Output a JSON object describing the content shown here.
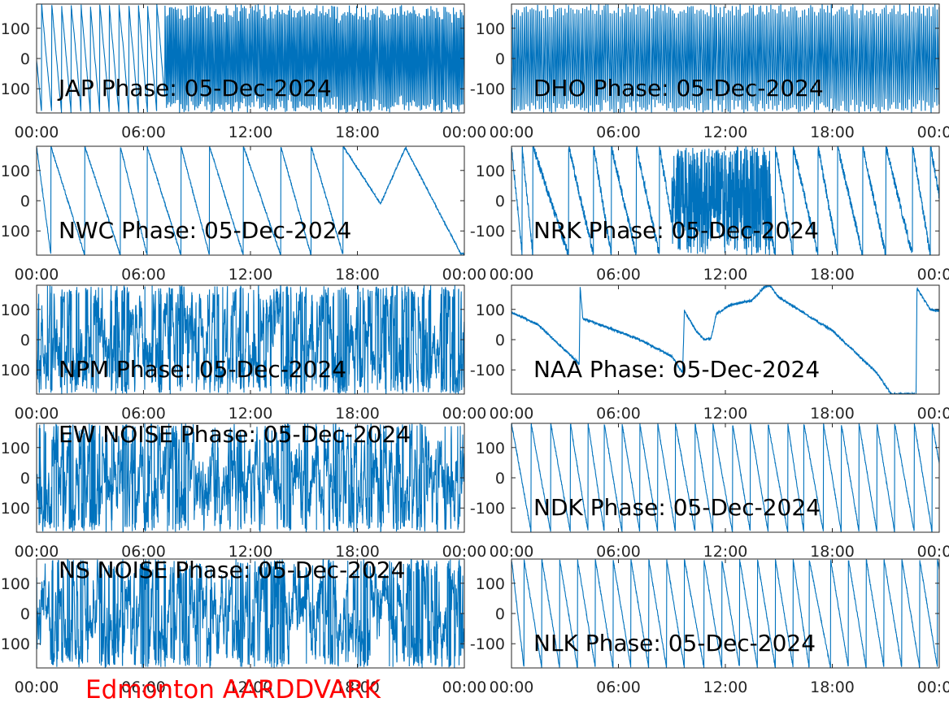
{
  "figure": {
    "footer_label": "Edmonton AARDDVARK",
    "footer_color": "#ff0000",
    "line_color": "#0072bd"
  },
  "chart_data": [
    {
      "type": "line",
      "title": "JAP Phase: 05-Dec-2024",
      "x_ticks": [
        "00:00",
        "06:00",
        "12:00",
        "18:00",
        "00:00"
      ],
      "y_ticks": [
        "100",
        "0",
        "100"
      ],
      "ylim": [
        -180,
        180
      ],
      "xlim": [
        "00:00",
        "24:00"
      ],
      "series": [
        {
          "style": "wrap",
          "hours": [
            [
              0,
              7.2,
              0.02
            ],
            [
              7.2,
              24,
              0.13
            ]
          ],
          "seed": 11
        }
      ]
    },
    {
      "type": "line",
      "title": "DHO Phase: 05-Dec-2024",
      "x_ticks": [
        "00:00",
        "06:00",
        "12:00",
        "18:00",
        "00:00"
      ],
      "y_ticks": [
        "100",
        "0",
        "-100"
      ],
      "ylim": [
        -180,
        180
      ],
      "xlim": [
        "00:00",
        "24:00"
      ],
      "series": [
        {
          "style": "wrap",
          "hours": [
            [
              0,
              24,
              0.1
            ]
          ],
          "seed": 12
        }
      ]
    },
    {
      "type": "line",
      "title": "NWC Phase: 05-Dec-2024",
      "x_ticks": [
        "00:00",
        "06:00",
        "12:00",
        "18:00",
        "00:00"
      ],
      "y_ticks": [
        "100",
        "0",
        "100"
      ],
      "ylim": [
        -180,
        180
      ],
      "xlim": [
        "00:00",
        "24:00"
      ],
      "series": [
        {
          "style": "saw",
          "resets": [
            0,
            0.8,
            2.7,
            4.7,
            6.2,
            8.1,
            9.7,
            11.6,
            13.7,
            15.4,
            17.2,
            23.8
          ],
          "points": [
            [
              17.2,
              180
            ],
            [
              19.3,
              -10
            ],
            [
              20.7,
              175
            ],
            [
              23.8,
              -175
            ]
          ],
          "seed": 13
        }
      ]
    },
    {
      "type": "line",
      "title": "NRK Phase: 05-Dec-2024",
      "x_ticks": [
        "00:00",
        "06:00",
        "12:00",
        "18:00",
        "00:00"
      ],
      "y_ticks": [
        "100",
        "0",
        "-100"
      ],
      "ylim": [
        -180,
        180
      ],
      "xlim": [
        "00:00",
        "24:00"
      ],
      "series": [
        {
          "style": "saw_noisy",
          "resets": [
            0,
            0.6,
            1.2,
            3.2,
            4.6,
            5.6,
            7.0,
            8.3,
            9.3,
            10.6,
            13.6,
            14.8,
            15.8,
            17.2,
            18.3,
            19.7,
            21.0,
            22.5,
            23.5
          ],
          "noisy": [
            [
              9.0,
              14.6
            ]
          ],
          "seed": 14
        }
      ]
    },
    {
      "type": "line",
      "title": "NPM Phase: 05-Dec-2024",
      "x_ticks": [
        "00:00",
        "06:00",
        "12:00",
        "18:00",
        "00:00"
      ],
      "y_ticks": [
        "100",
        "0",
        "100"
      ],
      "ylim": [
        -180,
        180
      ],
      "xlim": [
        "00:00",
        "24:00"
      ],
      "series": [
        {
          "style": "noise",
          "seed": 15
        }
      ]
    },
    {
      "type": "line",
      "title": "NAA Phase: 05-Dec-2024",
      "x_ticks": [
        "00:00",
        "06:00",
        "12:00",
        "18:00",
        "00:00"
      ],
      "y_ticks": [
        "100",
        "0",
        "-100"
      ],
      "ylim": [
        -180,
        180
      ],
      "xlim": [
        "00:00",
        "24:00"
      ],
      "series": [
        {
          "style": "points",
          "points": [
            [
              0,
              90
            ],
            [
              1.5,
              50
            ],
            [
              3.8,
              -80
            ],
            [
              3.85,
              175
            ],
            [
              4.0,
              70
            ],
            [
              7.0,
              5
            ],
            [
              9.0,
              -55
            ],
            [
              9.6,
              -110
            ],
            [
              9.7,
              95
            ],
            [
              10.4,
              25
            ],
            [
              10.8,
              0
            ],
            [
              11.2,
              5
            ],
            [
              11.5,
              85
            ],
            [
              12.3,
              115
            ],
            [
              13.5,
              130
            ],
            [
              14.2,
              175
            ],
            [
              14.5,
              178
            ],
            [
              15.0,
              140
            ],
            [
              18.0,
              30
            ],
            [
              20.5,
              -110
            ],
            [
              21.3,
              -180
            ],
            [
              22.7,
              -180
            ],
            [
              22.75,
              170
            ],
            [
              23.5,
              100
            ],
            [
              24,
              95
            ]
          ],
          "seed": 16
        }
      ]
    },
    {
      "type": "line",
      "title": "EW NOISE Phase: 05-Dec-2024",
      "x_ticks": [
        "00:00",
        "06:00",
        "12:00",
        "18:00",
        "00:00"
      ],
      "y_ticks": [
        "100",
        "0",
        "100"
      ],
      "ylim": [
        -180,
        180
      ],
      "xlim": [
        "00:00",
        "24:00"
      ],
      "series": [
        {
          "style": "noise",
          "seed": 17
        }
      ]
    },
    {
      "type": "line",
      "title": "NDK Phase: 05-Dec-2024",
      "x_ticks": [
        "00:00",
        "06:00",
        "12:00",
        "18:00",
        "00:00"
      ],
      "y_ticks": [
        "100",
        "0",
        "-100"
      ],
      "ylim": [
        -180,
        180
      ],
      "xlim": [
        "00:00",
        "24:00"
      ],
      "series": [
        {
          "style": "saw",
          "resets": [
            0,
            1.1,
            2.2,
            3.3,
            4.3,
            5.2,
            6.2,
            7.2,
            8.2,
            9.2,
            10.3,
            11.3,
            12.4,
            13.4,
            14.4,
            15.5,
            16.4,
            17.5,
            18.5,
            19.5,
            20.5,
            21.5,
            22.6,
            23.6
          ],
          "seed": 18
        }
      ]
    },
    {
      "type": "line",
      "title": "NS NOISE Phase: 05-Dec-2024",
      "x_ticks": [
        "00:00",
        "06:00",
        "12:00",
        "18:00",
        "00:00"
      ],
      "y_ticks": [
        "100",
        "0",
        "100"
      ],
      "ylim": [
        -180,
        180
      ],
      "xlim": [
        "00:00",
        "24:00"
      ],
      "series": [
        {
          "style": "noise",
          "seed": 19
        }
      ]
    },
    {
      "type": "line",
      "title": "NLK Phase: 05-Dec-2024",
      "x_ticks": [
        "00:00",
        "06:00",
        "12:00",
        "18:00",
        "00:00"
      ],
      "y_ticks": [
        "100",
        "0",
        "-100"
      ],
      "ylim": [
        -180,
        180
      ],
      "xlim": [
        "00:00",
        "24:00"
      ],
      "series": [
        {
          "style": "saw",
          "resets": [
            0,
            0.7,
            1.7,
            2.7,
            3.7,
            4.7,
            5.7,
            6.7,
            7.7,
            8.7,
            9.7,
            10.8,
            11.8,
            12.8,
            13.8,
            14.8,
            15.8,
            16.7,
            17.9,
            18.9,
            19.9,
            20.9,
            21.9,
            22.9,
            23.9
          ],
          "seed": 20
        }
      ]
    }
  ]
}
